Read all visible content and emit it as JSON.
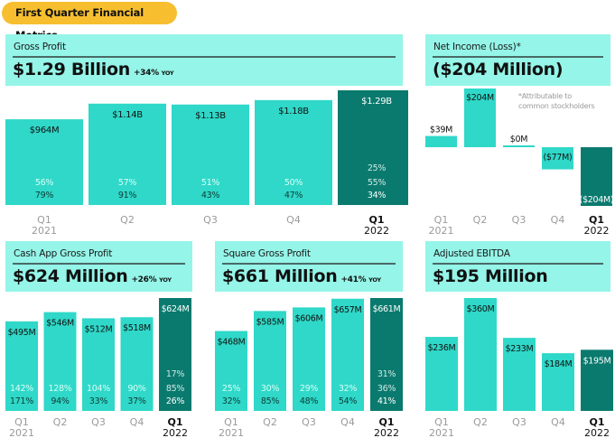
{
  "title": "First Quarter Financial Metrics",
  "colors": {
    "accent_bar": "#2FD8C8",
    "current_bar": "#0B7A6E",
    "header_bg": "#94F5E8",
    "title_pill": "#F7BF2F",
    "light_pct": "#D6FFF8",
    "muted_label": "#9a9a9a"
  },
  "panels": {
    "gross_profit": {
      "label": "Gross Profit",
      "value": "$1.29 Billion",
      "yoy": "+34%",
      "yoy_suffix": "YOY"
    },
    "net_income": {
      "label": "Net Income (Loss)*",
      "value": "($204 Million)",
      "note_line1": "*Attributable to",
      "note_line2": "common stockholders"
    },
    "cash_app": {
      "label": "Cash App Gross Profit",
      "value": "$624 Million",
      "yoy": "+26%",
      "yoy_suffix": "YOY"
    },
    "square": {
      "label": "Square Gross Profit",
      "value": "$661 Million",
      "yoy": "+41%",
      "yoy_suffix": "YOY"
    },
    "ebitda": {
      "label": "Adjusted EBITDA",
      "value": "$195 Million"
    }
  },
  "chart_data": [
    {
      "id": "gross_profit",
      "type": "bar",
      "title": "Gross Profit",
      "categories": [
        "Q1 2021",
        "Q2",
        "Q3",
        "Q4",
        "Q1 2022"
      ],
      "category_lines": [
        [
          "Q1",
          "2021"
        ],
        [
          "Q2"
        ],
        [
          "Q3"
        ],
        [
          "Q4"
        ],
        [
          "Q1",
          "2022"
        ]
      ],
      "values": [
        964,
        1140,
        1130,
        1180,
        1290
      ],
      "unit": "$M",
      "value_labels": [
        "$964M",
        "$1.14B",
        "$1.13B",
        "$1.18B",
        "$1.29B"
      ],
      "pct_rows": [
        [
          "",
          "",
          "",
          "",
          "25%"
        ],
        [
          "56%",
          "57%",
          "51%",
          "50%",
          "55%"
        ],
        [
          "79%",
          "91%",
          "43%",
          "47%",
          "34%"
        ]
      ],
      "highlight_index": 4,
      "ylim": [
        0,
        1290
      ]
    },
    {
      "id": "net_income",
      "type": "bar",
      "title": "Net Income (Loss)*",
      "categories": [
        "Q1 2021",
        "Q2",
        "Q3",
        "Q4",
        "Q1 2022"
      ],
      "category_lines": [
        [
          "Q1",
          "2021"
        ],
        [
          "Q2"
        ],
        [
          "Q3"
        ],
        [
          "Q4"
        ],
        [
          "Q1",
          "2022"
        ]
      ],
      "values": [
        39,
        204,
        0,
        -77,
        -204
      ],
      "unit": "$M",
      "value_labels": [
        "$39M",
        "$204M",
        "$0M",
        "($77M)",
        "($204M)"
      ],
      "pct_rows": [],
      "highlight_index": 4,
      "ylim": [
        -204,
        204
      ]
    },
    {
      "id": "cash_app",
      "type": "bar",
      "title": "Cash App Gross Profit",
      "categories": [
        "Q1 2021",
        "Q2",
        "Q3",
        "Q4",
        "Q1 2022"
      ],
      "category_lines": [
        [
          "Q1",
          "2021"
        ],
        [
          "Q2"
        ],
        [
          "Q3"
        ],
        [
          "Q4"
        ],
        [
          "Q1",
          "2022"
        ]
      ],
      "values": [
        495,
        546,
        512,
        518,
        624
      ],
      "unit": "$M",
      "value_labels": [
        "$495M",
        "$546M",
        "$512M",
        "$518M",
        "$624M"
      ],
      "pct_rows": [
        [
          "",
          "",
          "",
          "",
          "17%"
        ],
        [
          "142%",
          "128%",
          "104%",
          "90%",
          "85%"
        ],
        [
          "171%",
          "94%",
          "33%",
          "37%",
          "26%"
        ]
      ],
      "highlight_index": 4,
      "ylim": [
        0,
        624
      ]
    },
    {
      "id": "square",
      "type": "bar",
      "title": "Square Gross Profit",
      "categories": [
        "Q1 2021",
        "Q2",
        "Q3",
        "Q4",
        "Q1 2022"
      ],
      "category_lines": [
        [
          "Q1",
          "2021"
        ],
        [
          "Q2"
        ],
        [
          "Q3"
        ],
        [
          "Q4"
        ],
        [
          "Q1",
          "2022"
        ]
      ],
      "values": [
        468,
        585,
        606,
        657,
        661
      ],
      "unit": "$M",
      "value_labels": [
        "$468M",
        "$585M",
        "$606M",
        "$657M",
        "$661M"
      ],
      "pct_rows": [
        [
          "",
          "",
          "",
          "",
          "31%"
        ],
        [
          "25%",
          "30%",
          "29%",
          "32%",
          "36%"
        ],
        [
          "32%",
          "85%",
          "48%",
          "54%",
          "41%"
        ]
      ],
      "highlight_index": 4,
      "ylim": [
        0,
        661
      ]
    },
    {
      "id": "ebitda",
      "type": "bar",
      "title": "Adjusted EBITDA",
      "categories": [
        "Q1 2021",
        "Q2",
        "Q3",
        "Q4",
        "Q1 2022"
      ],
      "category_lines": [
        [
          "Q1",
          "2021"
        ],
        [
          "Q2"
        ],
        [
          "Q3"
        ],
        [
          "Q4"
        ],
        [
          "Q1",
          "2022"
        ]
      ],
      "values": [
        236,
        360,
        233,
        184,
        195
      ],
      "unit": "$M",
      "value_labels": [
        "$236M",
        "$360M",
        "$233M",
        "$184M",
        "$195M"
      ],
      "pct_rows": [],
      "highlight_index": 4,
      "ylim": [
        0,
        360
      ]
    }
  ]
}
